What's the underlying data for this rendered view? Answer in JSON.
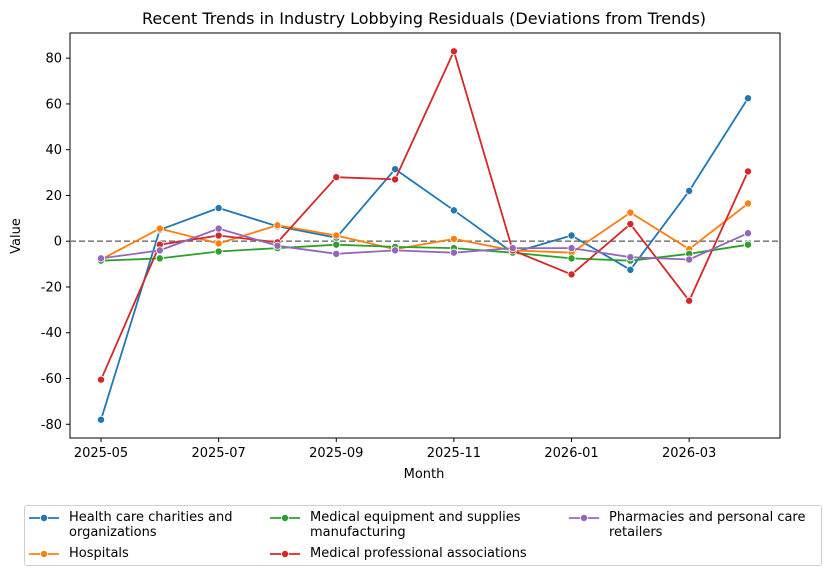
{
  "chart_data": {
    "type": "line",
    "title": "Recent Trends in Industry Lobbying Residuals (Deviations from Trends)",
    "xlabel": "Month",
    "ylabel": "Value",
    "ylim": [
      -86,
      91
    ],
    "yticks": [
      -80,
      -60,
      -40,
      -20,
      0,
      20,
      40,
      60,
      80
    ],
    "x": [
      "2025-05",
      "2025-06",
      "2025-07",
      "2025-08",
      "2025-09",
      "2025-10",
      "2025-11",
      "2025-12",
      "2026-01",
      "2026-02",
      "2026-03",
      "2026-04"
    ],
    "xtick_labels": [
      "2025-05",
      "2025-07",
      "2025-09",
      "2025-11",
      "2026-01",
      "2026-03"
    ],
    "reference_line": 0,
    "legend_position": "bottom-center",
    "series": [
      {
        "name": "Health care charities and\norganizations",
        "color": "#1f77b4",
        "values": [
          -78,
          5,
          14.5,
          6.5,
          1.5,
          31.5,
          13.5,
          -5,
          2.5,
          -12.5,
          22,
          62.5
        ]
      },
      {
        "name": "Hospitals",
        "color": "#ff7f0e",
        "values": [
          -8,
          5.5,
          -1,
          7,
          2.5,
          -3.5,
          1,
          -4,
          -5,
          12.5,
          -3.5,
          16.5
        ]
      },
      {
        "name": "Medical equipment and supplies\nmanufacturing",
        "color": "#2ca02c",
        "values": [
          -8.5,
          -7.5,
          -4.5,
          -3,
          -1.5,
          -2.5,
          -3,
          -5,
          -7.5,
          -8.5,
          -5.5,
          -1.5
        ]
      },
      {
        "name": "Medical professional associations",
        "color": "#d62728",
        "values": [
          -60.5,
          -1.5,
          2.5,
          -0.5,
          28,
          27,
          83,
          -4,
          -14.5,
          7.5,
          -26,
          30.5
        ]
      },
      {
        "name": "Pharmacies and personal care\nretailers",
        "color": "#9467bd",
        "values": [
          -7.5,
          -4,
          5.5,
          -2,
          -5.5,
          -4,
          -5,
          -3,
          -3,
          -7,
          -8,
          3.5
        ]
      }
    ]
  }
}
